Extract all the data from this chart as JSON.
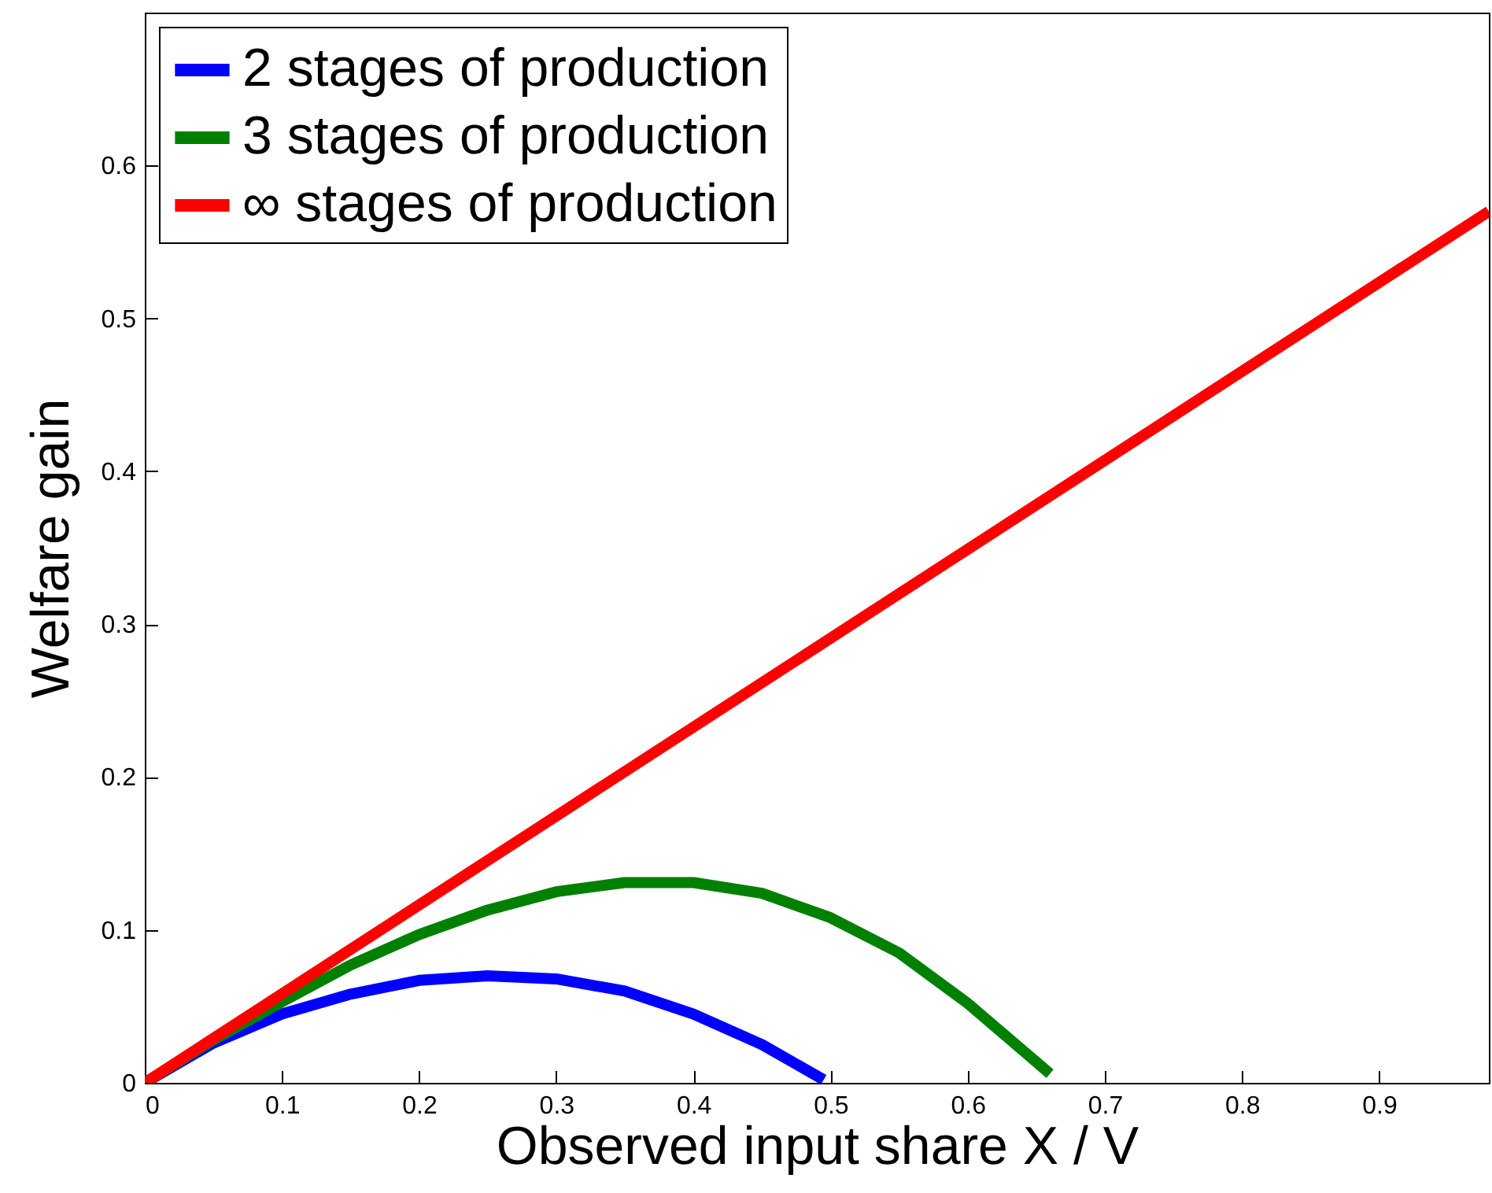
{
  "chart_data": {
    "type": "line",
    "xlabel": "Observed input share   X / V",
    "ylabel": "Welfare gain",
    "xlim": [
      0,
      0.98
    ],
    "ylim": [
      0,
      0.7
    ],
    "xticks": [
      0,
      0.1,
      0.2,
      0.3,
      0.4,
      0.5,
      0.6,
      0.7,
      0.8,
      0.9
    ],
    "yticks": [
      0,
      0.1,
      0.2,
      0.3,
      0.4,
      0.5,
      0.6
    ],
    "legend": "top left",
    "grid": false,
    "series": [
      {
        "name": "2 stages of production",
        "color": "#0000ff",
        "x": [
          0,
          0.05,
          0.1,
          0.15,
          0.2,
          0.25,
          0.3,
          0.35,
          0.4,
          0.45,
          0.495
        ],
        "values": [
          0,
          0.026,
          0.045,
          0.058,
          0.067,
          0.07,
          0.068,
          0.06,
          0.045,
          0.025,
          0.002
        ]
      },
      {
        "name": "3 stages of production",
        "color": "#008000",
        "x": [
          0,
          0.05,
          0.1,
          0.15,
          0.2,
          0.25,
          0.3,
          0.35,
          0.4,
          0.45,
          0.5,
          0.55,
          0.6,
          0.66
        ],
        "values": [
          0,
          0.028,
          0.053,
          0.077,
          0.097,
          0.113,
          0.125,
          0.131,
          0.131,
          0.124,
          0.108,
          0.085,
          0.052,
          0.006
        ]
      },
      {
        "name": "∞ stages of production",
        "color": "#ff0000",
        "x": [
          0,
          0.98
        ],
        "values": [
          0,
          0.57
        ]
      }
    ]
  }
}
